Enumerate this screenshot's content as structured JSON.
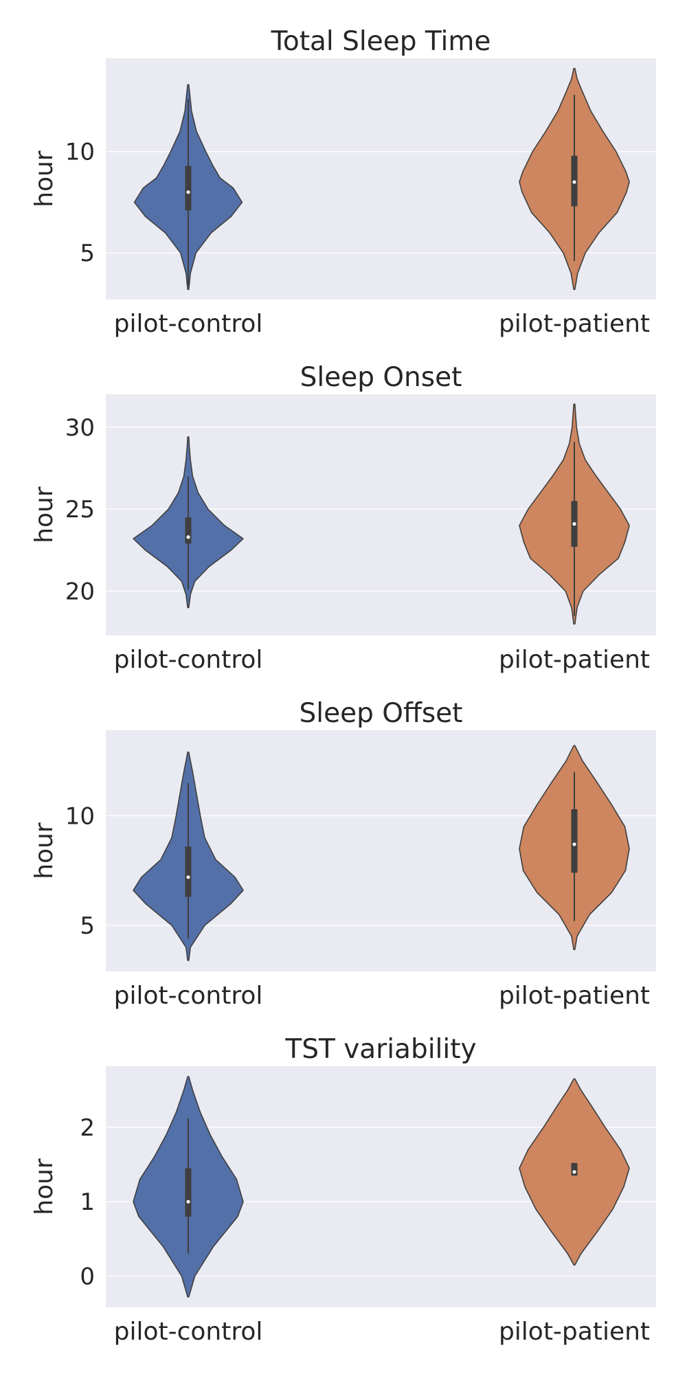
{
  "chart_data": [
    {
      "type": "violin",
      "title": "Total Sleep Time",
      "ylabel": "hour",
      "categories": [
        "pilot-control",
        "pilot-patient"
      ],
      "ylim": [
        2.7,
        14.6
      ],
      "yticks": [
        5,
        10
      ],
      "grid": true,
      "series": [
        {
          "category": "pilot-control",
          "color": "#5470a8",
          "min": 3.2,
          "max": 13.3,
          "whisker": [
            3.4,
            12.6
          ],
          "q1": 7.1,
          "median": 8.0,
          "q3": 9.3,
          "density": [
            [
              3.2,
              0.01
            ],
            [
              4.0,
              0.04
            ],
            [
              5.0,
              0.14
            ],
            [
              6.0,
              0.42
            ],
            [
              6.8,
              0.78
            ],
            [
              7.5,
              0.98
            ],
            [
              8.2,
              0.82
            ],
            [
              8.7,
              0.58
            ],
            [
              9.3,
              0.45
            ],
            [
              10.0,
              0.32
            ],
            [
              11.0,
              0.15
            ],
            [
              12.0,
              0.06
            ],
            [
              12.8,
              0.03
            ],
            [
              13.3,
              0.01
            ]
          ]
        },
        {
          "category": "pilot-patient",
          "color": "#cd865f",
          "min": 3.2,
          "max": 14.1,
          "whisker": [
            4.6,
            12.8
          ],
          "q1": 7.3,
          "median": 8.5,
          "q3": 9.8,
          "density": [
            [
              3.2,
              0.01
            ],
            [
              4.0,
              0.06
            ],
            [
              5.0,
              0.2
            ],
            [
              6.0,
              0.45
            ],
            [
              7.0,
              0.78
            ],
            [
              8.0,
              0.95
            ],
            [
              8.5,
              1.0
            ],
            [
              9.0,
              0.94
            ],
            [
              10.0,
              0.76
            ],
            [
              11.0,
              0.52
            ],
            [
              12.0,
              0.3
            ],
            [
              13.0,
              0.14
            ],
            [
              13.6,
              0.05
            ],
            [
              14.1,
              0.01
            ]
          ]
        }
      ]
    },
    {
      "type": "violin",
      "title": "Sleep Onset",
      "ylabel": "hour",
      "categories": [
        "pilot-control",
        "pilot-patient"
      ],
      "ylim": [
        17.3,
        32.0
      ],
      "yticks": [
        20,
        25,
        30
      ],
      "grid": true,
      "series": [
        {
          "category": "pilot-control",
          "color": "#5470a8",
          "min": 19.0,
          "max": 29.4,
          "whisker": [
            20.1,
            27.0
          ],
          "q1": 22.9,
          "median": 23.3,
          "q3": 24.5,
          "density": [
            [
              19.0,
              0.01
            ],
            [
              19.8,
              0.04
            ],
            [
              20.6,
              0.12
            ],
            [
              21.5,
              0.38
            ],
            [
              22.5,
              0.78
            ],
            [
              23.2,
              1.0
            ],
            [
              24.0,
              0.66
            ],
            [
              25.0,
              0.36
            ],
            [
              26.0,
              0.18
            ],
            [
              27.0,
              0.08
            ],
            [
              28.0,
              0.04
            ],
            [
              28.8,
              0.02
            ],
            [
              29.4,
              0.01
            ]
          ]
        },
        {
          "category": "pilot-patient",
          "color": "#cd865f",
          "min": 18.0,
          "max": 31.4,
          "whisker": [
            18.5,
            29.1
          ],
          "q1": 22.7,
          "median": 24.1,
          "q3": 25.5,
          "density": [
            [
              18.0,
              0.01
            ],
            [
              19.0,
              0.05
            ],
            [
              20.0,
              0.16
            ],
            [
              21.0,
              0.45
            ],
            [
              22.0,
              0.8
            ],
            [
              23.0,
              0.92
            ],
            [
              24.0,
              1.0
            ],
            [
              25.0,
              0.84
            ],
            [
              26.0,
              0.62
            ],
            [
              27.0,
              0.4
            ],
            [
              28.0,
              0.2
            ],
            [
              29.0,
              0.09
            ],
            [
              30.0,
              0.04
            ],
            [
              31.4,
              0.01
            ]
          ]
        }
      ]
    },
    {
      "type": "violin",
      "title": "Sleep Offset",
      "ylabel": "hour",
      "categories": [
        "pilot-control",
        "pilot-patient"
      ],
      "ylim": [
        2.9,
        13.9
      ],
      "yticks": [
        5,
        10
      ],
      "grid": true,
      "series": [
        {
          "category": "pilot-control",
          "color": "#5470a8",
          "min": 3.4,
          "max": 12.9,
          "whisker": [
            4.4,
            11.5
          ],
          "q1": 6.3,
          "median": 7.2,
          "q3": 8.6,
          "density": [
            [
              3.4,
              0.01
            ],
            [
              4.0,
              0.04
            ],
            [
              5.0,
              0.3
            ],
            [
              6.0,
              0.78
            ],
            [
              6.6,
              1.0
            ],
            [
              7.2,
              0.85
            ],
            [
              8.0,
              0.5
            ],
            [
              9.0,
              0.3
            ],
            [
              10.0,
              0.22
            ],
            [
              11.0,
              0.15
            ],
            [
              12.0,
              0.08
            ],
            [
              12.5,
              0.04
            ],
            [
              12.9,
              0.01
            ]
          ]
        },
        {
          "category": "pilot-patient",
          "color": "#cd865f",
          "min": 3.9,
          "max": 13.2,
          "whisker": [
            5.2,
            12.0
          ],
          "q1": 7.4,
          "median": 8.7,
          "q3": 10.3,
          "density": [
            [
              3.9,
              0.01
            ],
            [
              4.5,
              0.05
            ],
            [
              5.5,
              0.28
            ],
            [
              6.5,
              0.68
            ],
            [
              7.5,
              0.93
            ],
            [
              8.5,
              1.0
            ],
            [
              9.5,
              0.92
            ],
            [
              10.5,
              0.68
            ],
            [
              11.5,
              0.42
            ],
            [
              12.5,
              0.15
            ],
            [
              13.2,
              0.01
            ]
          ]
        }
      ]
    },
    {
      "type": "violin",
      "title": "TST variability",
      "ylabel": "hour",
      "categories": [
        "pilot-control",
        "pilot-patient"
      ],
      "ylim": [
        -0.42,
        2.82
      ],
      "yticks": [
        0,
        1,
        2
      ],
      "grid": true,
      "series": [
        {
          "category": "pilot-control",
          "color": "#5470a8",
          "min": -0.28,
          "max": 2.68,
          "whisker": [
            0.3,
            2.12
          ],
          "q1": 0.8,
          "median": 1.0,
          "q3": 1.45,
          "density": [
            [
              -0.28,
              0.01
            ],
            [
              0.0,
              0.12
            ],
            [
              0.4,
              0.46
            ],
            [
              0.8,
              0.9
            ],
            [
              1.0,
              1.0
            ],
            [
              1.3,
              0.88
            ],
            [
              1.6,
              0.62
            ],
            [
              1.9,
              0.4
            ],
            [
              2.2,
              0.22
            ],
            [
              2.5,
              0.08
            ],
            [
              2.68,
              0.01
            ]
          ]
        },
        {
          "category": "pilot-patient",
          "color": "#cd865f",
          "min": 0.15,
          "max": 2.65,
          "whisker": [
            1.35,
            1.52
          ],
          "q1": 1.35,
          "median": 1.4,
          "q3": 1.52,
          "density": [
            [
              0.15,
              0.01
            ],
            [
              0.3,
              0.12
            ],
            [
              0.6,
              0.42
            ],
            [
              0.9,
              0.7
            ],
            [
              1.2,
              0.9
            ],
            [
              1.45,
              1.0
            ],
            [
              1.7,
              0.84
            ],
            [
              2.0,
              0.56
            ],
            [
              2.3,
              0.3
            ],
            [
              2.5,
              0.12
            ],
            [
              2.65,
              0.01
            ]
          ]
        }
      ]
    }
  ]
}
